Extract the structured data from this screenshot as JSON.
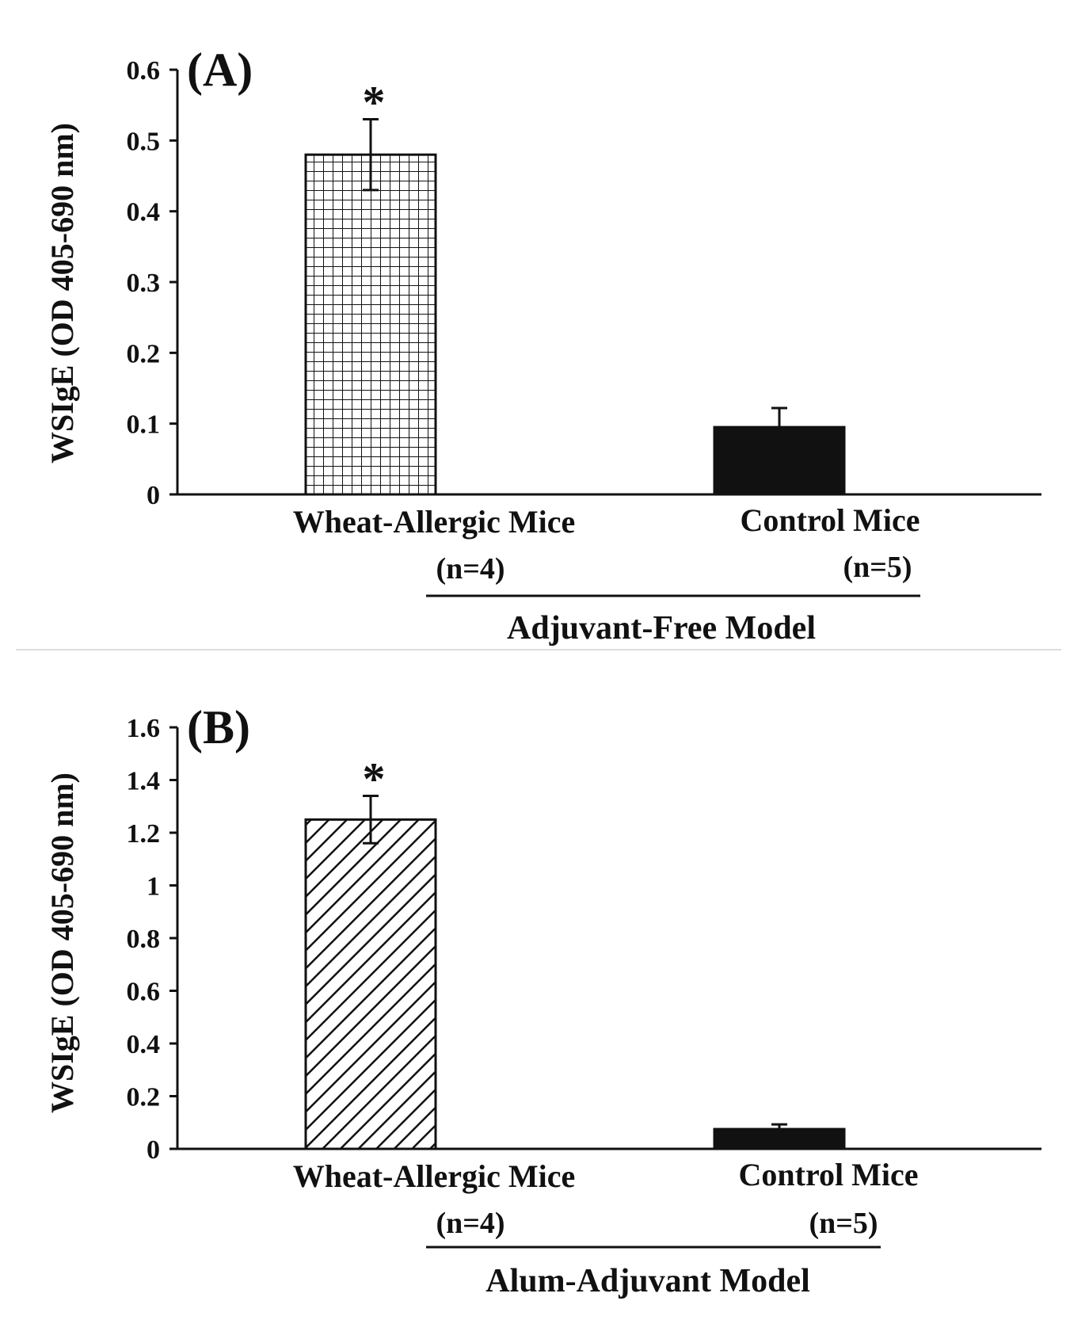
{
  "chart_data": [
    {
      "type": "bar",
      "panel": "(A)",
      "ylabel": "WSIgE (OD 405-690 nm)",
      "ylim": [
        0,
        0.6
      ],
      "yticks": [
        0,
        0.1,
        0.2,
        0.3,
        0.4,
        0.5,
        0.6
      ],
      "ytick_labels": [
        "0",
        "0.1",
        "0.2",
        "0.3",
        "0.4",
        "0.5",
        "0.6"
      ],
      "categories": [
        "Wheat-Allergic Mice",
        "Control Mice"
      ],
      "sample_sizes": [
        "(n=4)",
        "(n=5)"
      ],
      "values": [
        0.48,
        0.095
      ],
      "errors": [
        0.05,
        0.027
      ],
      "fills": [
        "grid",
        "solid"
      ],
      "significance": [
        "*",
        ""
      ],
      "group_label": "Adjuvant-Free Model"
    },
    {
      "type": "bar",
      "panel": "(B)",
      "ylabel": "WSIgE (OD 405-690 nm)",
      "ylim": [
        0,
        1.6
      ],
      "yticks": [
        0,
        0.2,
        0.4,
        0.6,
        0.8,
        1.0,
        1.2,
        1.4,
        1.6
      ],
      "ytick_labels": [
        "0",
        "0.2",
        "0.4",
        "0.6",
        "0.8",
        "1",
        "1.2",
        "1.4",
        "1.6"
      ],
      "categories": [
        "Wheat-Allergic Mice",
        "Control Mice"
      ],
      "sample_sizes": [
        "(n=4)",
        "(n=5)"
      ],
      "values": [
        1.25,
        0.075
      ],
      "errors": [
        0.09,
        0.018
      ],
      "fills": [
        "diagonal",
        "solid"
      ],
      "significance": [
        "*",
        ""
      ],
      "group_label": "Alum-Adjuvant Model"
    }
  ],
  "colors": {
    "ink": "#111111",
    "background": "#ffffff",
    "separator": "#dddddd"
  }
}
